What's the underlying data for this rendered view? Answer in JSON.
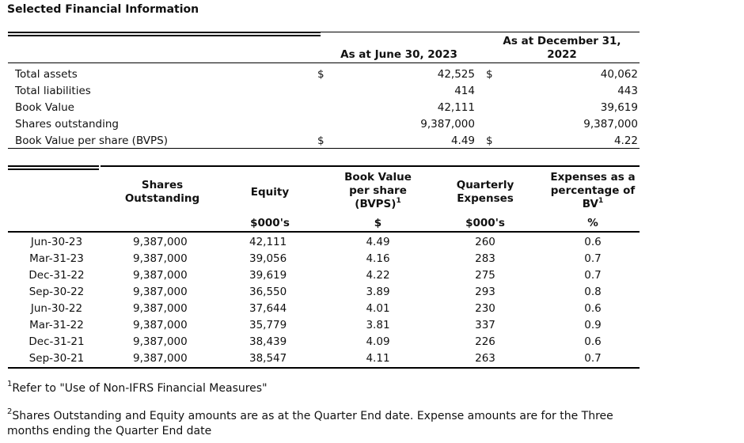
{
  "title": "Selected Financial Information",
  "top_table": {
    "col1_header": "As at June 30, 2023",
    "col2_header_line1": "As at December 31,",
    "col2_header_line2": "2022",
    "currency_symbol": "$",
    "rows": [
      {
        "label": "Total assets",
        "v1": "42,525",
        "v2": "40,062",
        "currency": true
      },
      {
        "label": "Total liabilities",
        "v1": "414",
        "v2": "443",
        "currency": false
      },
      {
        "label": "Book Value",
        "v1": "42,111",
        "v2": "39,619",
        "currency": false
      },
      {
        "label": "Shares outstanding",
        "v1": "9,387,000",
        "v2": "9,387,000",
        "currency": false
      },
      {
        "label": "Book Value per share (BVPS)",
        "v1": "4.49",
        "v2": "4.22",
        "currency": true
      }
    ]
  },
  "quarter_table": {
    "headers": {
      "shares_line1": "Shares",
      "shares_line2": "Outstanding",
      "equity": "Equity",
      "bvps_line1": "Book Value",
      "bvps_line2": "per share",
      "bvps_line3": "(BVPS)",
      "bvps_sup": "1",
      "qexp_line1": "Quarterly",
      "qexp_line2": "Expenses",
      "pct_line1": "Expenses as a",
      "pct_line2": "percentage of",
      "pct_line3": "BV",
      "pct_sup": "1"
    },
    "units": {
      "equity": "$000's",
      "bvps": "$",
      "qexp": "$000's",
      "pct": "%"
    },
    "rows": [
      {
        "date": "Jun-30-23",
        "shares": "9,387,000",
        "equity": "42,111",
        "bvps": "4.49",
        "qexp": "260",
        "pct": "0.6"
      },
      {
        "date": "Mar-31-23",
        "shares": "9,387,000",
        "equity": "39,056",
        "bvps": "4.16",
        "qexp": "283",
        "pct": "0.7"
      },
      {
        "date": "Dec-31-22",
        "shares": "9,387,000",
        "equity": "39,619",
        "bvps": "4.22",
        "qexp": "275",
        "pct": "0.7"
      },
      {
        "date": "Sep-30-22",
        "shares": "9,387,000",
        "equity": "36,550",
        "bvps": "3.89",
        "qexp": "293",
        "pct": "0.8"
      },
      {
        "date": "Jun-30-22",
        "shares": "9,387,000",
        "equity": "37,644",
        "bvps": "4.01",
        "qexp": "230",
        "pct": "0.6"
      },
      {
        "date": "Mar-31-22",
        "shares": "9,387,000",
        "equity": "35,779",
        "bvps": "3.81",
        "qexp": "337",
        "pct": "0.9"
      },
      {
        "date": "Dec-31-21",
        "shares": "9,387,000",
        "equity": "38,439",
        "bvps": "4.09",
        "qexp": "226",
        "pct": "0.6"
      },
      {
        "date": "Sep-30-21",
        "shares": "9,387,000",
        "equity": "38,547",
        "bvps": "4.11",
        "qexp": "263",
        "pct": "0.7"
      }
    ]
  },
  "footnotes": {
    "fn1_marker": "1",
    "fn1_text": "Refer to \"Use of Non-IFRS Financial Measures\"",
    "fn2_marker": "2",
    "fn2_text_line1": "Shares Outstanding and Equity amounts are as at the Quarter End date. Expense amounts are for the Three",
    "fn2_text_line2": "months ending the Quarter End date"
  }
}
